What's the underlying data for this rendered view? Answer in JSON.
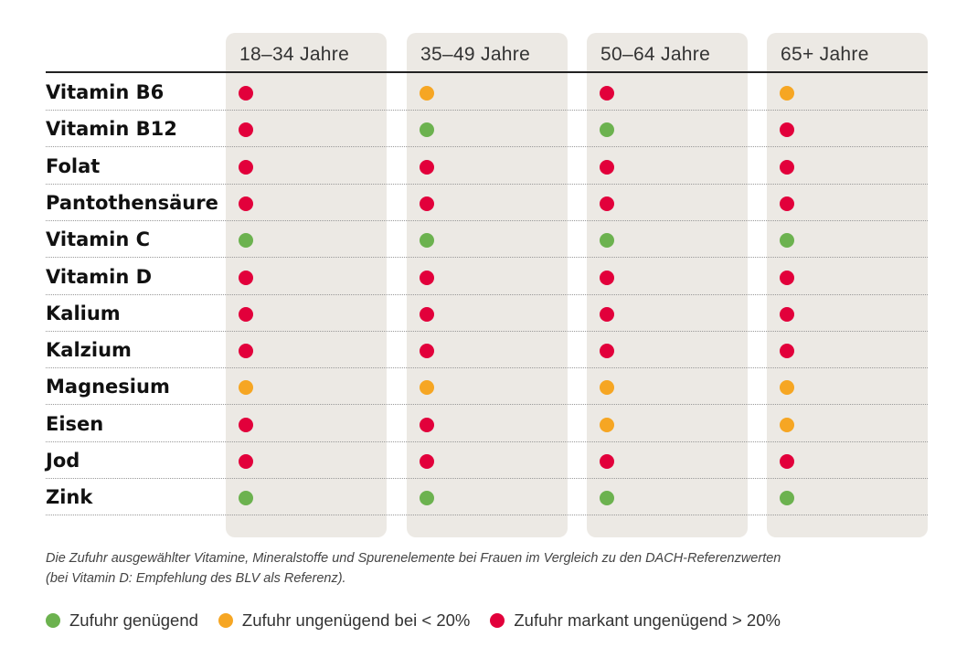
{
  "chart_data": {
    "type": "table",
    "columns": [
      "18–34 Jahre",
      "35–49 Jahre",
      "50–64 Jahre",
      "65+ Jahre"
    ],
    "rows": [
      {
        "label": "Vitamin B6",
        "values": [
          "red",
          "orange",
          "red",
          "orange"
        ]
      },
      {
        "label": "Vitamin B12",
        "values": [
          "red",
          "green",
          "green",
          "red"
        ]
      },
      {
        "label": "Folat",
        "values": [
          "red",
          "red",
          "red",
          "red"
        ]
      },
      {
        "label": "Pantothensäure",
        "values": [
          "red",
          "red",
          "red",
          "red"
        ]
      },
      {
        "label": "Vitamin C",
        "values": [
          "green",
          "green",
          "green",
          "green"
        ]
      },
      {
        "label": "Vitamin D",
        "values": [
          "red",
          "red",
          "red",
          "red"
        ]
      },
      {
        "label": "Kalium",
        "values": [
          "red",
          "red",
          "red",
          "red"
        ]
      },
      {
        "label": "Kalzium",
        "values": [
          "red",
          "red",
          "red",
          "red"
        ]
      },
      {
        "label": "Magnesium",
        "values": [
          "orange",
          "orange",
          "orange",
          "orange"
        ]
      },
      {
        "label": "Eisen",
        "values": [
          "red",
          "red",
          "orange",
          "orange"
        ]
      },
      {
        "label": "Jod",
        "values": [
          "red",
          "red",
          "red",
          "red"
        ]
      },
      {
        "label": "Zink",
        "values": [
          "green",
          "green",
          "green",
          "green"
        ]
      }
    ],
    "legend": [
      {
        "key": "green",
        "label": "Zufuhr genügend"
      },
      {
        "key": "orange",
        "label": "Zufuhr ungenügend bei < 20%"
      },
      {
        "key": "red",
        "label": "Zufuhr markant ungenügend > 20%"
      }
    ],
    "colors": {
      "green": "#6cb24f",
      "orange": "#f6a623",
      "red": "#e2003b",
      "column_bg": "#ece9e4"
    }
  },
  "note": {
    "line1": "Die Zufuhr ausgewählter Vitamine, Mineralstoffe und Spurenelemente bei Frauen im Vergleich zu den DACH-Referenzwerten",
    "line2": "(bei Vitamin D: Empfehlung des BLV als Referenz)."
  }
}
